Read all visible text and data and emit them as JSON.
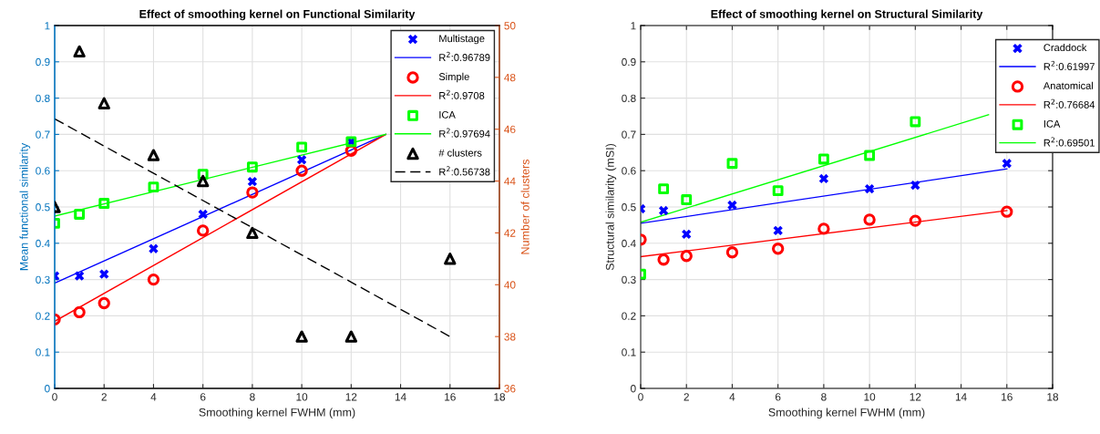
{
  "chart_data": [
    {
      "type": "scatter",
      "title": "Effect of smoothing kernel on Functional Similarity",
      "xlabel": "Smoothing kernel FWHM (mm)",
      "ylabel": "Mean functional similarity",
      "y2label": "Number of clusters",
      "xlim": [
        0,
        18
      ],
      "xticks": [
        0,
        2,
        4,
        6,
        8,
        10,
        12,
        14,
        16,
        18
      ],
      "ylim": [
        0,
        1
      ],
      "yticks": [
        0,
        0.1,
        0.2,
        0.3,
        0.4,
        0.5,
        0.6,
        0.7,
        0.8,
        0.9,
        1
      ],
      "y2lim": [
        36,
        50
      ],
      "y2ticks": [
        36,
        38,
        40,
        42,
        44,
        46,
        48,
        50
      ],
      "grid": true,
      "legend": "top right",
      "series": [
        {
          "name": "Multistage",
          "marker": "cross",
          "color": "#0000ff",
          "x": [
            0,
            1,
            2,
            4,
            6,
            8,
            10,
            12
          ],
          "values": [
            0.31,
            0.31,
            0.315,
            0.385,
            0.48,
            0.57,
            0.63,
            0.68
          ]
        },
        {
          "name": "R$^{2}$:0.96789",
          "type": "line",
          "line_style": "solid",
          "color": "#0000ff",
          "x": [
            0,
            13.4
          ],
          "values": [
            0.29,
            0.7
          ]
        },
        {
          "name": "Simple",
          "marker": "circle",
          "color": "#ff0000",
          "x": [
            0,
            1,
            2,
            4,
            6,
            8,
            10,
            12
          ],
          "values": [
            0.19,
            0.21,
            0.235,
            0.3,
            0.435,
            0.54,
            0.6,
            0.655
          ]
        },
        {
          "name": "R$^{2}$:0.9708",
          "type": "line",
          "line_style": "solid",
          "color": "#ff0000",
          "x": [
            0,
            13.4
          ],
          "values": [
            0.185,
            0.7
          ]
        },
        {
          "name": "ICA",
          "marker": "square",
          "color": "#00ff00",
          "x": [
            0,
            1,
            2,
            4,
            6,
            8,
            10,
            12
          ],
          "values": [
            0.455,
            0.48,
            0.51,
            0.555,
            0.59,
            0.61,
            0.665,
            0.68
          ]
        },
        {
          "name": "R$^{2}$:0.97694",
          "type": "line",
          "line_style": "solid",
          "color": "#00ff00",
          "x": [
            0,
            13.4
          ],
          "values": [
            0.475,
            0.7
          ]
        },
        {
          "name": "# clusters",
          "marker": "triangle",
          "color": "#000000",
          "axis": "y2",
          "x": [
            0,
            1,
            2,
            4,
            6,
            8,
            10,
            12,
            16
          ],
          "values": [
            43,
            49,
            47,
            45,
            44,
            42,
            38,
            38,
            41
          ]
        },
        {
          "name": "R$^{2}$:0.56738",
          "type": "line",
          "line_style": "dashed",
          "color": "#000000",
          "axis": "y2",
          "x": [
            0,
            16
          ],
          "values": [
            46.4,
            38
          ]
        }
      ]
    },
    {
      "type": "scatter",
      "title": "Effect of smoothing kernel on Structural Similarity",
      "xlabel": "Smoothing kernel FWHM (mm)",
      "ylabel": "Structural similarity (mSI)",
      "xlim": [
        0,
        18
      ],
      "xticks": [
        0,
        2,
        4,
        6,
        8,
        10,
        12,
        14,
        16,
        18
      ],
      "ylim": [
        0,
        1
      ],
      "yticks": [
        0,
        0.1,
        0.2,
        0.3,
        0.4,
        0.5,
        0.6,
        0.7,
        0.8,
        0.9,
        1
      ],
      "grid": true,
      "legend": "top right",
      "series": [
        {
          "name": "Craddock",
          "marker": "cross",
          "color": "#0000ff",
          "x": [
            0,
            1,
            2,
            4,
            6,
            8,
            10,
            12,
            16
          ],
          "values": [
            0.495,
            0.49,
            0.425,
            0.505,
            0.435,
            0.578,
            0.55,
            0.56,
            0.62
          ]
        },
        {
          "name": "R$^{2}$:0.61997",
          "type": "line",
          "line_style": "solid",
          "color": "#0000ff",
          "x": [
            0,
            16
          ],
          "values": [
            0.455,
            0.605
          ]
        },
        {
          "name": "Anatomical",
          "marker": "circle",
          "color": "#ff0000",
          "x": [
            0,
            1,
            2,
            4,
            6,
            8,
            10,
            12,
            16
          ],
          "values": [
            0.41,
            0.355,
            0.365,
            0.375,
            0.385,
            0.44,
            0.465,
            0.462,
            0.487
          ]
        },
        {
          "name": "R$^{2}$:0.76684",
          "type": "line",
          "line_style": "solid",
          "color": "#ff0000",
          "x": [
            0,
            16
          ],
          "values": [
            0.363,
            0.49
          ]
        },
        {
          "name": "ICA",
          "marker": "square",
          "color": "#00ff00",
          "x": [
            0,
            1,
            2,
            4,
            6,
            8,
            10,
            12
          ],
          "values": [
            0.315,
            0.55,
            0.52,
            0.62,
            0.545,
            0.632,
            0.642,
            0.735
          ]
        },
        {
          "name": "R$^{2}$:0.69501",
          "type": "line",
          "line_style": "solid",
          "color": "#00ff00",
          "x": [
            0,
            15.2
          ],
          "values": [
            0.458,
            0.754
          ]
        }
      ]
    }
  ]
}
